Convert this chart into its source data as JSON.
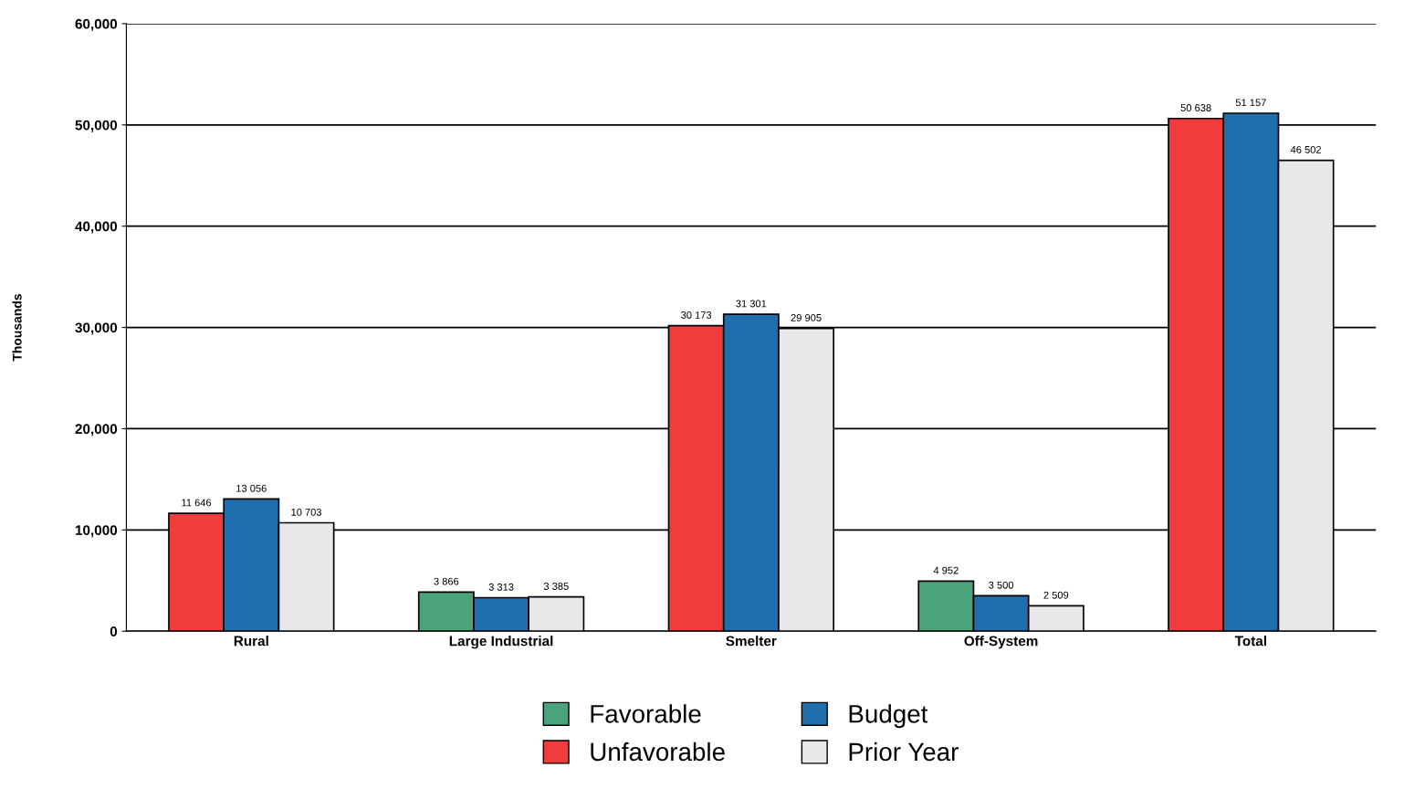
{
  "chart_data": {
    "type": "bar",
    "ylabel": "Thousands",
    "categories": [
      "Rural",
      "Large Industrial",
      "Smelter",
      "Off-System",
      "Total"
    ],
    "series": [
      {
        "name": "Favorable",
        "color": "#4aa37a",
        "values": [
          null,
          3866,
          null,
          4952,
          null
        ]
      },
      {
        "name": "Unfavorable",
        "color": "#f03c3c",
        "values": [
          11646,
          null,
          30173,
          null,
          50638
        ]
      },
      {
        "name": "Budget",
        "color": "#1f6fae",
        "values": [
          13056,
          3313,
          31301,
          3500,
          51157
        ]
      },
      {
        "name": "Prior Year",
        "color": "#e8e8ea",
        "values": [
          10703,
          3385,
          29905,
          2509,
          46502
        ]
      }
    ],
    "ylim": [
      0,
      60000
    ],
    "yticks": [
      0,
      {
        "value": 10000,
        "label": "10,000"
      },
      {
        "value": 20000,
        "label": "20,000"
      },
      {
        "value": 30000,
        "label": "30,000"
      },
      {
        "value": 40000,
        "label": "40,000"
      },
      {
        "value": 50000,
        "label": "50,000"
      },
      {
        "value": 60000,
        "label": "60,000"
      }
    ],
    "grid": "y",
    "legend": "bottom",
    "data_labels": true
  }
}
